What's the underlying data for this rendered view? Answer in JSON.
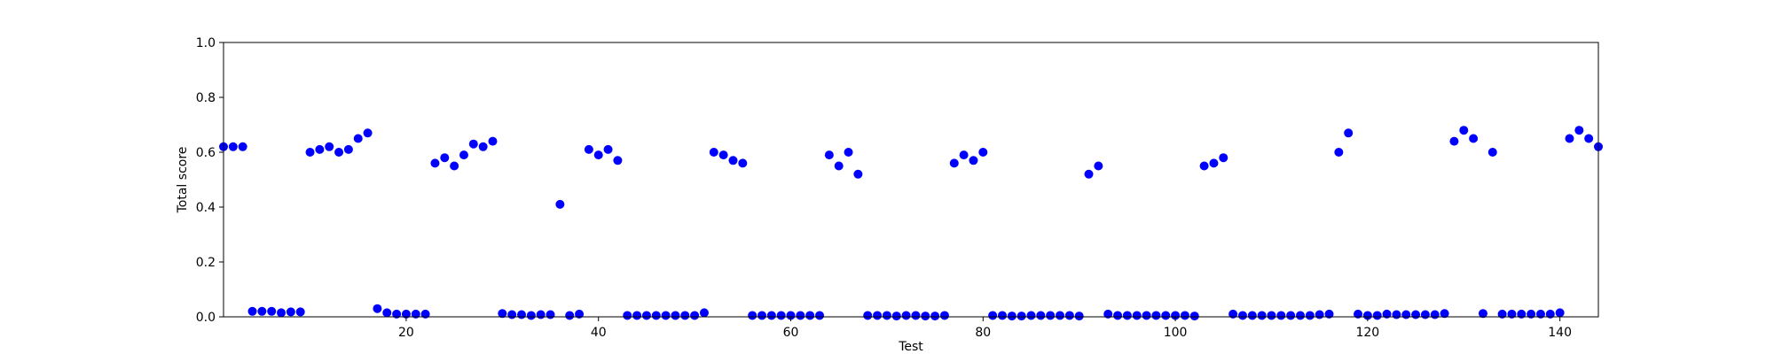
{
  "chart_data": {
    "type": "scatter",
    "xlabel": "Test",
    "ylabel": "Total score",
    "xlim": [
      1,
      144
    ],
    "ylim": [
      0,
      1.0
    ],
    "xticks": [
      20,
      40,
      60,
      80,
      100,
      120,
      140
    ],
    "yticks": [
      0.0,
      0.2,
      0.4,
      0.6,
      0.8,
      1.0
    ],
    "xtick_labels": [
      "20",
      "40",
      "60",
      "80",
      "100",
      "120",
      "140"
    ],
    "ytick_labels": [
      "0.0",
      "0.2",
      "0.4",
      "0.6",
      "0.8",
      "1.0"
    ],
    "grid": false,
    "marker_color": "#0000ff",
    "x": [
      1,
      2,
      3,
      4,
      5,
      6,
      7,
      8,
      9,
      10,
      11,
      12,
      13,
      14,
      15,
      16,
      17,
      18,
      19,
      20,
      21,
      22,
      23,
      24,
      25,
      26,
      27,
      28,
      29,
      30,
      31,
      32,
      33,
      34,
      35,
      36,
      37,
      38,
      39,
      40,
      41,
      42,
      43,
      44,
      45,
      46,
      47,
      48,
      49,
      50,
      51,
      52,
      53,
      54,
      55,
      56,
      57,
      58,
      59,
      60,
      61,
      62,
      63,
      64,
      65,
      66,
      67,
      68,
      69,
      70,
      71,
      72,
      73,
      74,
      75,
      76,
      77,
      78,
      79,
      80,
      81,
      82,
      83,
      84,
      85,
      86,
      87,
      88,
      89,
      90,
      91,
      92,
      93,
      94,
      95,
      96,
      97,
      98,
      99,
      100,
      101,
      102,
      103,
      104,
      105,
      106,
      107,
      108,
      109,
      110,
      111,
      112,
      113,
      114,
      115,
      116,
      117,
      118,
      119,
      120,
      121,
      122,
      123,
      124,
      125,
      126,
      127,
      128,
      129,
      130,
      131,
      132,
      133,
      134,
      135,
      136,
      137,
      138,
      139,
      140,
      141,
      142,
      143,
      144
    ],
    "y": [
      0.62,
      0.62,
      0.62,
      0.02,
      0.02,
      0.02,
      0.015,
      0.018,
      0.018,
      0.6,
      0.61,
      0.62,
      0.6,
      0.61,
      0.65,
      0.67,
      0.03,
      0.015,
      0.01,
      0.01,
      0.01,
      0.01,
      0.56,
      0.58,
      0.55,
      0.59,
      0.63,
      0.62,
      0.64,
      0.012,
      0.008,
      0.008,
      0.005,
      0.008,
      0.008,
      0.41,
      0.005,
      0.01,
      0.61,
      0.59,
      0.61,
      0.57,
      0.005,
      0.005,
      0.005,
      0.005,
      0.005,
      0.005,
      0.005,
      0.005,
      0.015,
      0.6,
      0.59,
      0.57,
      0.56,
      0.005,
      0.005,
      0.005,
      0.005,
      0.005,
      0.005,
      0.005,
      0.005,
      0.59,
      0.55,
      0.6,
      0.52,
      0.005,
      0.005,
      0.005,
      0.003,
      0.005,
      0.005,
      0.003,
      0.003,
      0.005,
      0.56,
      0.59,
      0.57,
      0.6,
      0.005,
      0.005,
      0.003,
      0.003,
      0.005,
      0.005,
      0.005,
      0.005,
      0.005,
      0.003,
      0.52,
      0.55,
      0.01,
      0.005,
      0.005,
      0.005,
      0.005,
      0.005,
      0.005,
      0.005,
      0.005,
      0.003,
      0.55,
      0.56,
      0.58,
      0.01,
      0.005,
      0.005,
      0.005,
      0.005,
      0.005,
      0.005,
      0.005,
      0.005,
      0.008,
      0.01,
      0.6,
      0.67,
      0.01,
      0.005,
      0.005,
      0.01,
      0.008,
      0.008,
      0.008,
      0.008,
      0.008,
      0.012,
      0.64,
      0.68,
      0.65,
      0.012,
      0.6,
      0.01,
      0.01,
      0.01,
      0.01,
      0.01,
      0.01,
      0.015,
      0.65,
      0.68,
      0.65,
      0.62
    ]
  }
}
